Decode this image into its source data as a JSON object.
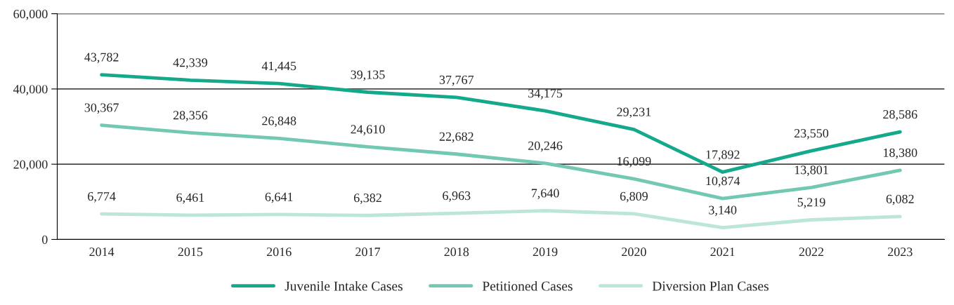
{
  "chart_data": {
    "type": "line",
    "categories": [
      "2014",
      "2015",
      "2016",
      "2017",
      "2018",
      "2019",
      "2020",
      "2021",
      "2022",
      "2023"
    ],
    "series": [
      {
        "name": "Juvenile Intake Cases",
        "color": "#14a98b",
        "values": [
          43782,
          42339,
          41445,
          39135,
          37767,
          34175,
          29231,
          17892,
          23550,
          28586
        ],
        "value_labels": [
          "43,782",
          "42,339",
          "41,445",
          "39,135",
          "37,767",
          "34,175",
          "29,231",
          "17,892",
          "23,550",
          "28,586"
        ]
      },
      {
        "name": "Petitioned Cases",
        "color": "#72c8b0",
        "values": [
          30367,
          28356,
          26848,
          24610,
          22682,
          20246,
          16099,
          10874,
          13801,
          18380
        ],
        "value_labels": [
          "30,367",
          "28,356",
          "26,848",
          "24,610",
          "22,682",
          "20,246",
          "16,099",
          "10,874",
          "13,801",
          "18,380"
        ]
      },
      {
        "name": "Diversion Plan Cases",
        "color": "#bce6d8",
        "values": [
          6774,
          6461,
          6641,
          6382,
          6963,
          7640,
          6809,
          3140,
          5219,
          6082
        ],
        "value_labels": [
          "6,774",
          "6,461",
          "6,641",
          "6,382",
          "6,963",
          "7,640",
          "6,809",
          "3,140",
          "5,219",
          "6,082"
        ]
      }
    ],
    "ylim": [
      0,
      60000
    ],
    "yticks": [
      0,
      {
        "value": 20000,
        "label": "20,000"
      },
      {
        "value": 40000,
        "label": "40,000"
      },
      {
        "value": 60000,
        "label": "60,000"
      }
    ],
    "grid": "y",
    "legend": "bottom",
    "marker": "none",
    "line_style": "solid"
  }
}
